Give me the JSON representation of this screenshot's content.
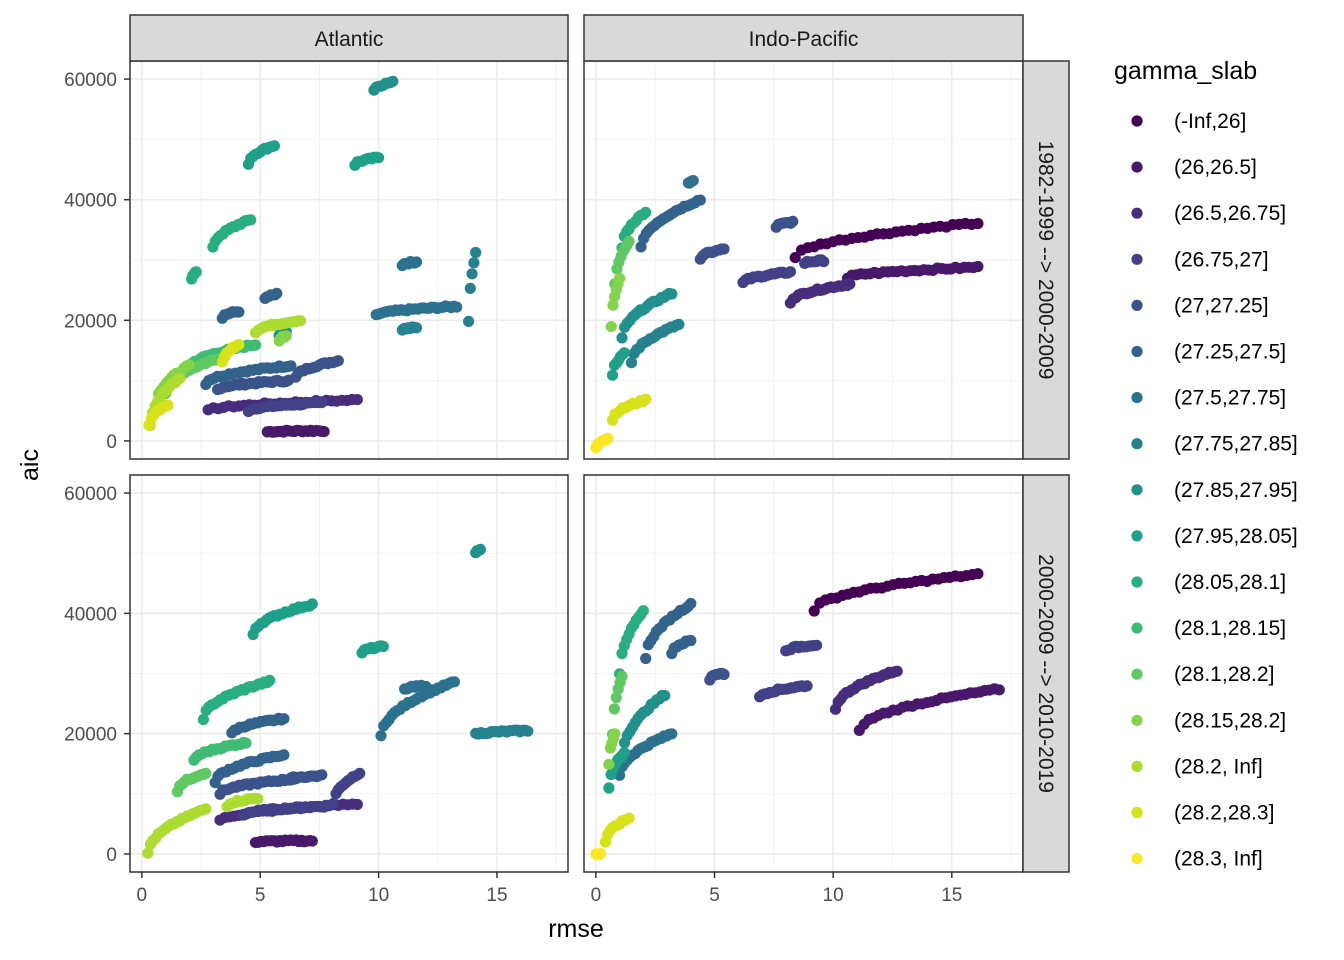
{
  "chart_data": {
    "type": "scatter",
    "xlabel": "rmse",
    "ylabel": "aic",
    "legend_title": "gamma_slab",
    "legend_position": "right",
    "grid": true,
    "xlim": [
      -0.5,
      18
    ],
    "ylim": [
      -3000,
      63000
    ],
    "x_ticks": [
      0,
      5,
      10,
      15
    ],
    "y_ticks": [
      0,
      20000,
      40000,
      60000
    ],
    "x_tick_labels": [
      "0",
      "5",
      "10",
      "15"
    ],
    "y_tick_labels": [
      "0",
      "20000",
      "40000",
      "60000"
    ],
    "facet_cols": [
      "Atlantic",
      "Indo-Pacific"
    ],
    "facet_rows": [
      "1982-1999 --> 2000-2009",
      "2000-2009 --> 2010-2019"
    ],
    "series": [
      {
        "name": "(-Inf,26]",
        "color": "#440154"
      },
      {
        "name": "(26,26.5]",
        "color": "#48186a"
      },
      {
        "name": "(26.5,26.75]",
        "color": "#472d7b"
      },
      {
        "name": "(26.75,27]",
        "color": "#424086"
      },
      {
        "name": "(27,27.25]",
        "color": "#3b528b"
      },
      {
        "name": "(27.25,27.5]",
        "color": "#33638d"
      },
      {
        "name": "(27.5,27.75]",
        "color": "#2c728e"
      },
      {
        "name": "(27.75,27.85]",
        "color": "#26828e"
      },
      {
        "name": "(27.85,27.95]",
        "color": "#21918c"
      },
      {
        "name": "(27.95,28.05]",
        "color": "#1fa088"
      },
      {
        "name": "(28.05,28.1]",
        "color": "#28ae80"
      },
      {
        "name": "(28.1,28.15]",
        "color": "#3fbc73"
      },
      {
        "name": "(28.1,28.2]",
        "color": "#5ec962"
      },
      {
        "name": "(28.15,28.2]",
        "color": "#84d44b"
      },
      {
        "name": "(28.2, Inf]",
        "color": "#addc30"
      },
      {
        "name": "(28.2,28.3]",
        "color": "#d8e219"
      },
      {
        "name": "(28.3, Inf]",
        "color": "#fde725"
      }
    ],
    "panels": [
      {
        "col": 0,
        "row": 0,
        "groups": [
          {
            "s": 1,
            "x": [
              5.3,
              7.7
            ],
            "y": [
              1500,
              1700
            ]
          },
          {
            "s": 2,
            "x": [
              2.8,
              9.1
            ],
            "y": [
              5000,
              6800
            ]
          },
          {
            "s": 3,
            "x": [
              4.5,
              7.6
            ],
            "y": [
              5000,
              6300
            ]
          },
          {
            "s": 4,
            "x": [
              3.2,
              6.2
            ],
            "y": [
              8500,
              10000
            ]
          },
          {
            "s": 4,
            "x": [
              6.5,
              8.3
            ],
            "y": [
              10500,
              13300
            ]
          },
          {
            "s": 5,
            "x": [
              2.7,
              6.3
            ],
            "y": [
              9500,
              12500
            ]
          },
          {
            "s": 5,
            "x": [
              3.4,
              4.1
            ],
            "y": [
              20500,
              21500
            ]
          },
          {
            "s": 5,
            "x": [
              5.2,
              5.7
            ],
            "y": [
              23500,
              24300
            ]
          },
          {
            "s": 6,
            "x": [
              9.9,
              13.3
            ],
            "y": [
              20800,
              22300
            ]
          },
          {
            "s": 6,
            "x": [
              11,
              11.6
            ],
            "y": [
              29200,
              29700
            ]
          },
          {
            "s": 7,
            "x": [
              11,
              11.6
            ],
            "y": [
              18500,
              18800
            ]
          },
          {
            "s": 7,
            "x": [
              13.8,
              14.1
            ],
            "y": [
              19700,
              31100
            ]
          },
          {
            "s": 8,
            "x": [
              5.8,
              6.1
            ],
            "y": [
              17500,
              18200
            ]
          },
          {
            "s": 8,
            "x": [
              9.8,
              10.6
            ],
            "y": [
              58200,
              59500
            ]
          },
          {
            "s": 9,
            "x": [
              4.5,
              5.6
            ],
            "y": [
              46000,
              49000
            ]
          },
          {
            "s": 9,
            "x": [
              9.0,
              10.0
            ],
            "y": [
              45800,
              47000
            ]
          },
          {
            "s": 10,
            "x": [
              2.1,
              2.3
            ],
            "y": [
              27000,
              28000
            ]
          },
          {
            "s": 10,
            "x": [
              3.0,
              4.6
            ],
            "y": [
              32000,
              36700
            ]
          },
          {
            "s": 11,
            "x": [
              2.0,
              4.8
            ],
            "y": [
              12000,
              16000
            ]
          },
          {
            "s": 12,
            "x": [
              1.0,
              3.5
            ],
            "y": [
              8000,
              14000
            ]
          },
          {
            "s": 13,
            "x": [
              0.6,
              2.0
            ],
            "y": [
              6000,
              12500
            ]
          },
          {
            "s": 13,
            "x": [
              5.8,
              6.1
            ],
            "y": [
              16500,
              17500
            ]
          },
          {
            "s": 14,
            "x": [
              0.35,
              1.6
            ],
            "y": [
              2500,
              10500
            ]
          },
          {
            "s": 14,
            "x": [
              4.8,
              6.7
            ],
            "y": [
              18000,
              20000
            ]
          },
          {
            "s": 15,
            "x": [
              0.3,
              1.1
            ],
            "y": [
              2500,
              6000
            ]
          },
          {
            "s": 15,
            "x": [
              3.4,
              4.1
            ],
            "y": [
              13000,
              16000
            ]
          }
        ]
      },
      {
        "col": 1,
        "row": 0,
        "groups": [
          {
            "s": 0,
            "x": [
              8.4,
              16.1
            ],
            "y": [
              30500,
              36100
            ]
          },
          {
            "s": 1,
            "x": [
              10.6,
              16.1
            ],
            "y": [
              27000,
              28800
            ]
          },
          {
            "s": 2,
            "x": [
              8.2,
              10.7
            ],
            "y": [
              23000,
              26000
            ]
          },
          {
            "s": 3,
            "x": [
              6.2,
              8.2
            ],
            "y": [
              26200,
              28000
            ]
          },
          {
            "s": 3,
            "x": [
              8.8,
              9.6
            ],
            "y": [
              29500,
              29900
            ]
          },
          {
            "s": 4,
            "x": [
              4.4,
              5.4
            ],
            "y": [
              30200,
              31800
            ]
          },
          {
            "s": 4,
            "x": [
              7.6,
              8.3
            ],
            "y": [
              35500,
              36300
            ]
          },
          {
            "s": 5,
            "x": [
              1.9,
              4.4
            ],
            "y": [
              32000,
              40000
            ]
          },
          {
            "s": 6,
            "x": [
              3.9,
              4.1
            ],
            "y": [
              42800,
              43000
            ]
          },
          {
            "s": 7,
            "x": [
              1.5,
              3.5
            ],
            "y": [
              13000,
              19300
            ]
          },
          {
            "s": 8,
            "x": [
              1.1,
              3.2
            ],
            "y": [
              17000,
              24500
            ]
          },
          {
            "s": 9,
            "x": [
              0.7,
              1.2
            ],
            "y": [
              11000,
              14500
            ]
          },
          {
            "s": 10,
            "x": [
              1.1,
              2.1
            ],
            "y": [
              32000,
              38000
            ]
          },
          {
            "s": 12,
            "x": [
              0.8,
              1.4
            ],
            "y": [
              26000,
              33000
            ]
          },
          {
            "s": 13,
            "x": [
              0.65,
              1.0
            ],
            "y": [
              19000,
              27000
            ]
          },
          {
            "s": 15,
            "x": [
              0.7,
              2.1
            ],
            "y": [
              3500,
              6800
            ]
          },
          {
            "s": 16,
            "x": [
              0.0,
              0.5
            ],
            "y": [
              -1000,
              300
            ]
          }
        ]
      },
      {
        "col": 0,
        "row": 1,
        "groups": [
          {
            "s": 1,
            "x": [
              4.8,
              7.2
            ],
            "y": [
              2000,
              2200
            ]
          },
          {
            "s": 2,
            "x": [
              3.3,
              9.1
            ],
            "y": [
              5500,
              8300
            ]
          },
          {
            "s": 3,
            "x": [
              4.3,
              7.9
            ],
            "y": [
              6500,
              8000
            ]
          },
          {
            "s": 3,
            "x": [
              8.1,
              9.2
            ],
            "y": [
              8500,
              13500
            ]
          },
          {
            "s": 4,
            "x": [
              3.3,
              6.5
            ],
            "y": [
              10000,
              12500
            ]
          },
          {
            "s": 4,
            "x": [
              6.3,
              7.6
            ],
            "y": [
              12500,
              13000
            ]
          },
          {
            "s": 5,
            "x": [
              3.1,
              6.0
            ],
            "y": [
              12000,
              16500
            ]
          },
          {
            "s": 5,
            "x": [
              3.8,
              6.0
            ],
            "y": [
              20000,
              22500
            ]
          },
          {
            "s": 6,
            "x": [
              10.1,
              13.2
            ],
            "y": [
              19500,
              28600
            ]
          },
          {
            "s": 6,
            "x": [
              11.1,
              12.0
            ],
            "y": [
              27300,
              28000
            ]
          },
          {
            "s": 7,
            "x": [
              14.1,
              16.3
            ],
            "y": [
              19900,
              20500
            ]
          },
          {
            "s": 8,
            "x": [
              14.1,
              14.3
            ],
            "y": [
              50200,
              50500
            ]
          },
          {
            "s": 9,
            "x": [
              4.7,
              7.2
            ],
            "y": [
              36500,
              41500
            ]
          },
          {
            "s": 9,
            "x": [
              9.3,
              10.2
            ],
            "y": [
              33500,
              34500
            ]
          },
          {
            "s": 10,
            "x": [
              2.6,
              5.4
            ],
            "y": [
              22500,
              28700
            ]
          },
          {
            "s": 11,
            "x": [
              2.2,
              4.4
            ],
            "y": [
              15500,
              18500
            ]
          },
          {
            "s": 12,
            "x": [
              1.5,
              2.7
            ],
            "y": [
              10500,
              13500
            ]
          },
          {
            "s": 14,
            "x": [
              0.25,
              2.7
            ],
            "y": [
              0,
              7500
            ]
          },
          {
            "s": 14,
            "x": [
              3.6,
              4.9
            ],
            "y": [
              8000,
              9300
            ]
          }
        ]
      },
      {
        "col": 1,
        "row": 1,
        "groups": [
          {
            "s": 0,
            "x": [
              9.2,
              16.1
            ],
            "y": [
              40500,
              46500
            ]
          },
          {
            "s": 1,
            "x": [
              11.1,
              17.0
            ],
            "y": [
              20400,
              27400
            ]
          },
          {
            "s": 2,
            "x": [
              10.1,
              12.7
            ],
            "y": [
              24000,
              30500
            ]
          },
          {
            "s": 3,
            "x": [
              6.9,
              8.9
            ],
            "y": [
              26000,
              28000
            ]
          },
          {
            "s": 3,
            "x": [
              8.0,
              9.3
            ],
            "y": [
              33700,
              34800
            ]
          },
          {
            "s": 4,
            "x": [
              4.8,
              5.4
            ],
            "y": [
              29000,
              30000
            ]
          },
          {
            "s": 5,
            "x": [
              2.1,
              4.0
            ],
            "y": [
              32500,
              41500
            ]
          },
          {
            "s": 5,
            "x": [
              3.2,
              4.0
            ],
            "y": [
              33500,
              35500
            ]
          },
          {
            "s": 6,
            "x": [
              1.0,
              3.2
            ],
            "y": [
              13000,
              20000
            ]
          },
          {
            "s": 8,
            "x": [
              1.1,
              2.9
            ],
            "y": [
              16000,
              26500
            ]
          },
          {
            "s": 9,
            "x": [
              0.55,
              1.2
            ],
            "y": [
              11000,
              17000
            ]
          },
          {
            "s": 10,
            "x": [
              1.0,
              2.0
            ],
            "y": [
              30000,
              40500
            ]
          },
          {
            "s": 12,
            "x": [
              0.7,
              1.1
            ],
            "y": [
              20000,
              29500
            ]
          },
          {
            "s": 13,
            "x": [
              0.55,
              0.8
            ],
            "y": [
              15000,
              20000
            ]
          },
          {
            "s": 15,
            "x": [
              0.4,
              1.4
            ],
            "y": [
              2000,
              6000
            ]
          },
          {
            "s": 16,
            "x": [
              0.0,
              0.2
            ],
            "y": [
              0,
              0
            ]
          }
        ]
      }
    ]
  }
}
